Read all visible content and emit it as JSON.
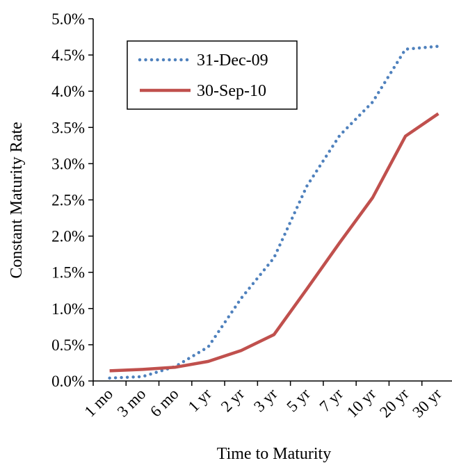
{
  "chart_data": {
    "type": "line",
    "categories": [
      "1 mo",
      "3 mo",
      "6 mo",
      "1 yr",
      "2 yr",
      "3 yr",
      "5 yr",
      "7 yr",
      "10 yr",
      "20 yr",
      "30 yr"
    ],
    "series": [
      {
        "name": "31-Dec-09",
        "values": [
          0.04,
          0.06,
          0.2,
          0.47,
          1.14,
          1.7,
          2.69,
          3.39,
          3.85,
          4.58,
          4.62
        ],
        "color": "#4F81BD",
        "style": "dotted"
      },
      {
        "name": "30-Sep-10",
        "values": [
          0.14,
          0.16,
          0.19,
          0.27,
          0.42,
          0.64,
          1.27,
          1.91,
          2.53,
          3.38,
          3.69
        ],
        "color": "#C0504D",
        "style": "solid"
      }
    ],
    "xlabel": "Time to Maturity",
    "ylabel": "Constant Maturity Rate",
    "ylim": [
      0,
      5.0
    ],
    "y_ticks": [
      "0.0%",
      "0.5%",
      "1.0%",
      "1.5%",
      "2.0%",
      "2.5%",
      "3.0%",
      "3.5%",
      "4.0%",
      "4.5%",
      "5.0%"
    ],
    "grid": false,
    "legend_position": "top-left"
  }
}
